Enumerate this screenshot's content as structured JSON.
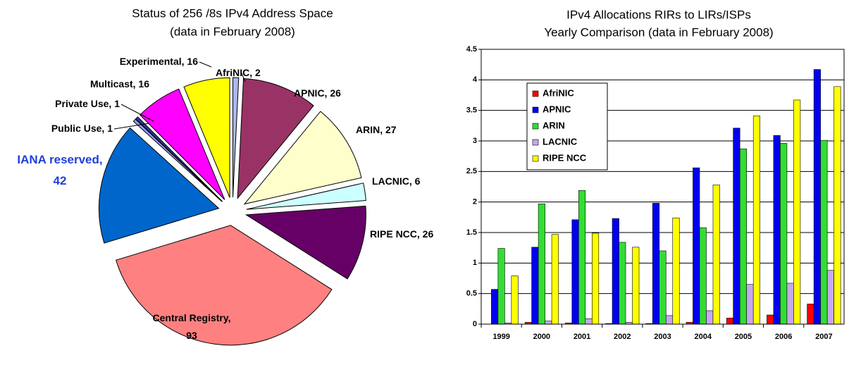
{
  "chart_data": [
    {
      "type": "pie",
      "title": [
        "Status of 256 /8s IPv4 Address Space",
        "(data in February 2008)"
      ],
      "values": [
        2,
        26,
        27,
        6,
        26,
        93,
        42,
        1,
        1,
        16,
        16
      ],
      "value_labels": [
        "AfriNIC, 2",
        "APNIC, 26",
        "ARIN, 27",
        "LACNIC, 6",
        "RIPE NCC, 26",
        "Central Registry,\n93",
        "IANA reserved,\n42",
        "Public Use, 1",
        "Private Use, 1",
        "Multicast, 16",
        "Experimental, 16"
      ],
      "colors": [
        "#a9b8f0",
        "#993366",
        "#ffffcc",
        "#ccffff",
        "#660066",
        "#ff8080",
        "#0066cc",
        "#9999ff",
        "#333399",
        "#ff00ff",
        "#ffff00"
      ]
    },
    {
      "type": "bar",
      "title": [
        "IPv4 Allocations RIRs to LIRs/ISPs",
        "Yearly Comparison (data in February 2008)"
      ],
      "categories": [
        "1999",
        "2000",
        "2001",
        "2002",
        "2003",
        "2004",
        "2005",
        "2006",
        "2007"
      ],
      "series": [
        {
          "name": "AfriNIC",
          "color": "#ff0000",
          "values": [
            0,
            0.03,
            0.02,
            0.01,
            0.01,
            0.03,
            0.1,
            0.15,
            0.33
          ]
        },
        {
          "name": "APNIC",
          "color": "#0000ee",
          "values": [
            0.57,
            1.26,
            1.71,
            1.73,
            1.98,
            2.56,
            3.21,
            3.09,
            4.17
          ]
        },
        {
          "name": "ARIN",
          "color": "#33dd33",
          "values": [
            1.24,
            1.97,
            2.19,
            1.34,
            1.2,
            1.58,
            2.87,
            2.96,
            3.01
          ]
        },
        {
          "name": "LACNIC",
          "color": "#c8a8ee",
          "values": [
            0.02,
            0.05,
            0.09,
            0.03,
            0.14,
            0.22,
            0.65,
            0.67,
            0.88
          ]
        },
        {
          "name": "RIPE NCC",
          "color": "#ffff00",
          "values": [
            0.79,
            1.47,
            1.49,
            1.26,
            1.74,
            2.28,
            3.41,
            3.67,
            3.89
          ]
        }
      ],
      "ylim": [
        0,
        4.5
      ],
      "yticks": [
        0,
        0.5,
        1,
        1.5,
        2,
        2.5,
        3,
        3.5,
        4,
        4.5
      ],
      "grid": true,
      "legend": "upper left"
    }
  ]
}
